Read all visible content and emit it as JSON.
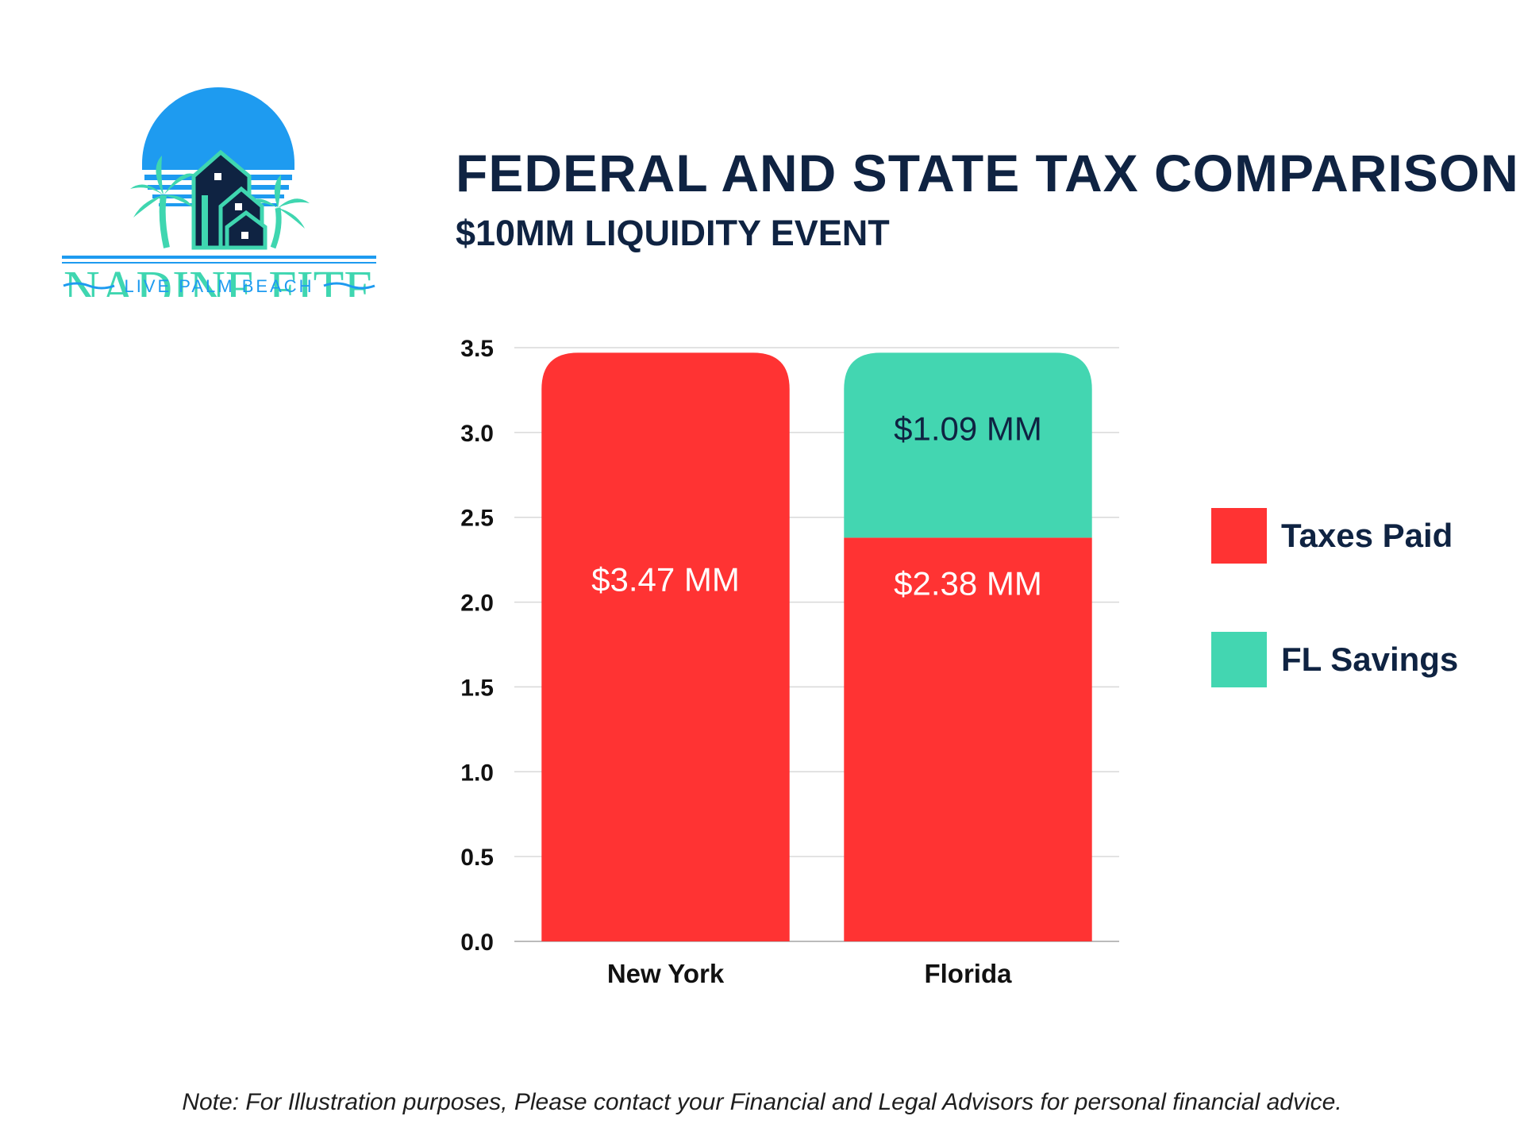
{
  "logo": {
    "name": "NADINE FITE",
    "tagline": "LIVE PALM BEACH"
  },
  "header": {
    "title": "FEDERAL AND STATE TAX COMPARISON",
    "subtitle": "$10MM LIQUIDITY EVENT"
  },
  "colors": {
    "taxes_paid": "#FF3333",
    "fl_savings": "#43D6B1",
    "navy": "#0F2342",
    "sky_blue": "#1E9BF0"
  },
  "chart_data": {
    "type": "bar",
    "stacked": true,
    "categories": [
      "New York",
      "Florida"
    ],
    "series": [
      {
        "name": "Taxes Paid",
        "values": [
          3.47,
          2.38
        ],
        "labels": [
          "$3.47 MM",
          "$2.38 MM"
        ],
        "color": "#FF3333"
      },
      {
        "name": "FL Savings",
        "values": [
          0,
          1.09
        ],
        "labels": [
          "",
          "$1.09 MM"
        ],
        "color": "#43D6B1"
      }
    ],
    "ylim": [
      0,
      3.5
    ],
    "yticks": [
      "0.0",
      "0.5",
      "1.0",
      "1.5",
      "2.0",
      "2.5",
      "3.0",
      "3.5"
    ],
    "grid": true,
    "legend_position": "right"
  },
  "footnote": "Note: For Illustration purposes,  Please contact your Financial and Legal Advisors for personal financial advice."
}
